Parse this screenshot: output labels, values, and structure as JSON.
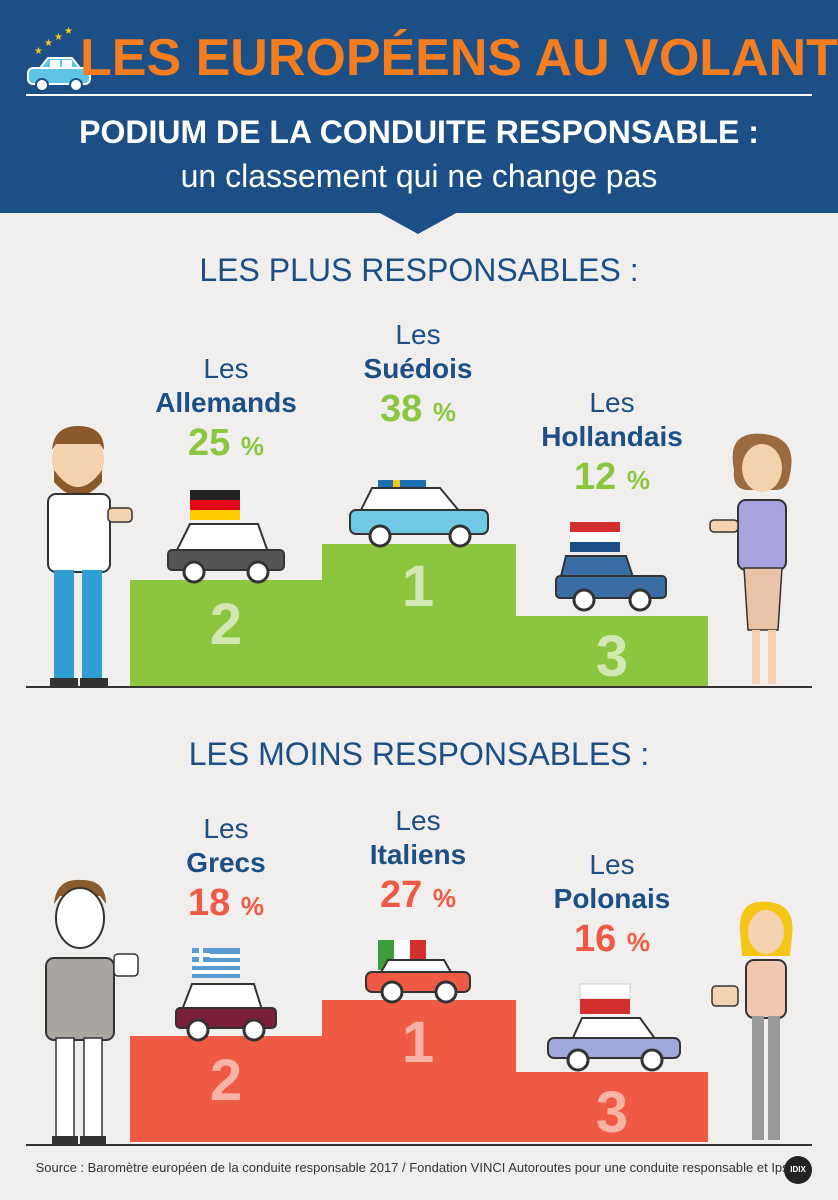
{
  "header": {
    "title": "LES EUROPÉENS AU VOLANT",
    "subtitle_bold": "PODIUM DE LA CONDUITE RESPONSABLE :",
    "subtitle": "un classement qui ne change pas",
    "accent_color": "#f47d20",
    "background_color": "#1b4f86"
  },
  "most": {
    "heading": "LES PLUS RESPONSABLES :",
    "color": "#8cc63f",
    "entries": [
      {
        "rank": "1",
        "prefix": "Les",
        "nationality": "Suédois",
        "value": "38",
        "unit": "%",
        "flag": "sweden-flag"
      },
      {
        "rank": "2",
        "prefix": "Les",
        "nationality": "Allemands",
        "value": "25",
        "unit": "%",
        "flag": "germany-flag"
      },
      {
        "rank": "3",
        "prefix": "Les",
        "nationality": "Hollandais",
        "value": "12",
        "unit": "%",
        "flag": "netherlands-flag"
      }
    ]
  },
  "least": {
    "heading": "LES MOINS RESPONSABLES :",
    "color": "#ef5a44",
    "entries": [
      {
        "rank": "1",
        "prefix": "Les",
        "nationality": "Italiens",
        "value": "27",
        "unit": "%",
        "flag": "italy-flag"
      },
      {
        "rank": "2",
        "prefix": "Les",
        "nationality": "Grecs",
        "value": "18",
        "unit": "%",
        "flag": "greece-flag"
      },
      {
        "rank": "3",
        "prefix": "Les",
        "nationality": "Polonais",
        "value": "16",
        "unit": "%",
        "flag": "poland-flag"
      }
    ]
  },
  "footer": {
    "source": "Source : Baromètre européen de la conduite responsable 2017 / Fondation VINCI Autoroutes pour une conduite responsable et Ipsos",
    "logo": "IDIX"
  }
}
